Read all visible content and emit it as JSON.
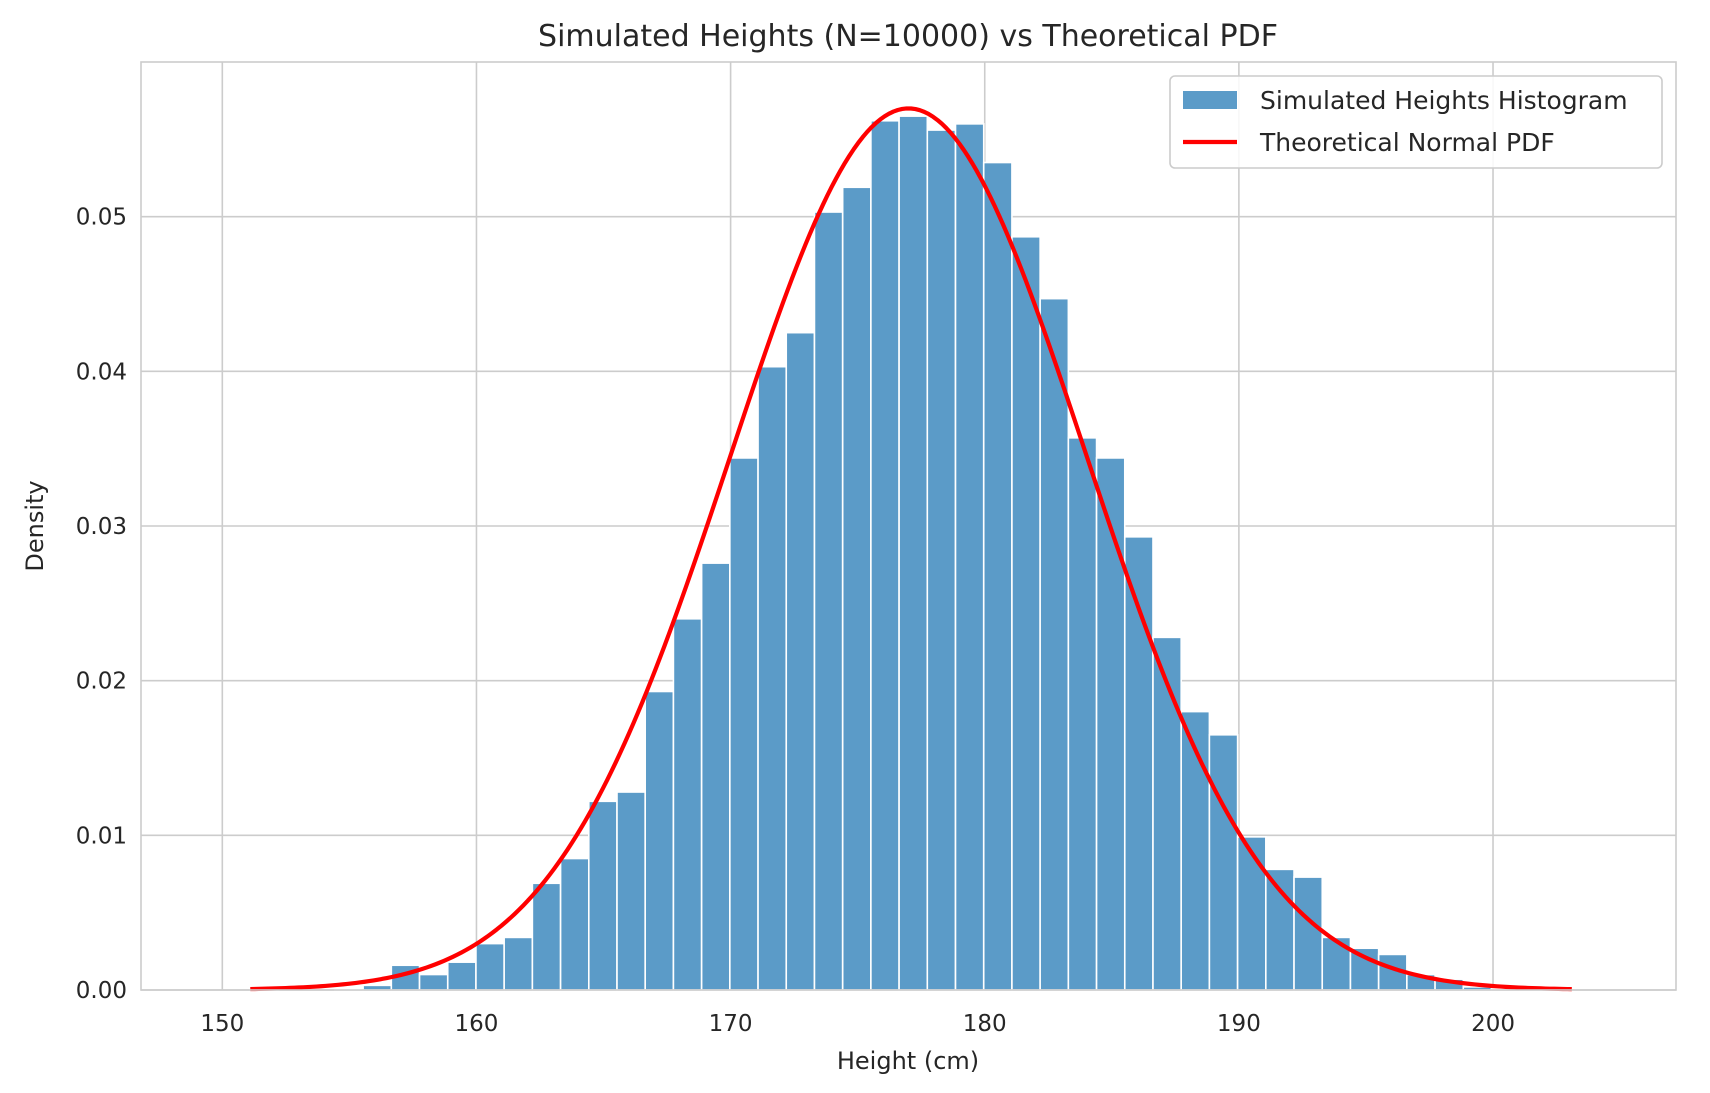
{
  "chart_data": {
    "type": "bar",
    "title": "Simulated Heights (N=10000) vs Theoretical PDF",
    "xlabel": "Height (cm)",
    "ylabel": "Density",
    "xlim": [
      146.8,
      207.2
    ],
    "ylim": [
      0,
      0.06
    ],
    "xticks": [
      150,
      160,
      170,
      180,
      190,
      200
    ],
    "yticks": [
      0.0,
      0.01,
      0.02,
      0.03,
      0.04,
      0.05
    ],
    "grid": true,
    "legend_position": "top-right",
    "histogram": {
      "name": "Simulated Heights Histogram",
      "color": "#5b9bc8",
      "edge_color": "#ffffff",
      "bin_edges": [
        151.1,
        152.21,
        153.32,
        154.43,
        155.54,
        156.65,
        157.76,
        158.87,
        159.98,
        161.09,
        162.2,
        163.31,
        164.42,
        165.53,
        166.64,
        167.75,
        168.86,
        169.97,
        171.08,
        172.19,
        173.3,
        174.41,
        175.52,
        176.63,
        177.74,
        178.85,
        179.96,
        181.07,
        182.18,
        183.29,
        184.4,
        185.51,
        186.62,
        187.73,
        188.84,
        189.95,
        191.06,
        192.17,
        193.28,
        194.39,
        195.5,
        196.61,
        197.72,
        198.83,
        199.94,
        201.05,
        202.16,
        203.27
      ],
      "densities": [
        0.0001,
        0.0,
        0.0,
        0.0001,
        0.0003,
        0.0016,
        0.001,
        0.0018,
        0.003,
        0.0034,
        0.0069,
        0.0085,
        0.0122,
        0.0128,
        0.0193,
        0.024,
        0.0276,
        0.0344,
        0.0403,
        0.0425,
        0.0503,
        0.0519,
        0.0562,
        0.0565,
        0.0556,
        0.056,
        0.0535,
        0.0487,
        0.0447,
        0.0357,
        0.0344,
        0.0293,
        0.0228,
        0.018,
        0.0165,
        0.0099,
        0.0078,
        0.0073,
        0.0034,
        0.0027,
        0.0023,
        0.001,
        0.0007,
        0.0002,
        0.0001,
        0.0001,
        0.0
      ]
    },
    "pdf_curve": {
      "name": "Theoretical Normal PDF",
      "color": "#ff0000",
      "mean": 177,
      "std": 7,
      "x_range": [
        151.1,
        203.1
      ],
      "peak": 0.057
    }
  }
}
